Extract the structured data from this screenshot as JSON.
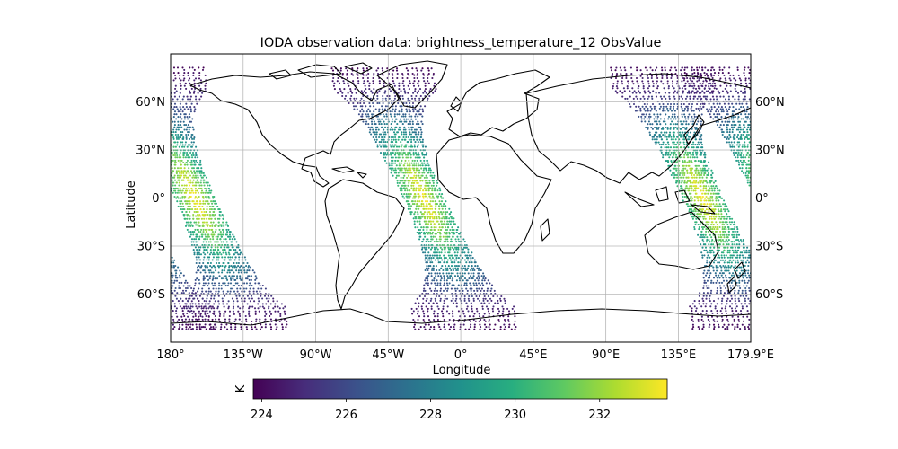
{
  "title": "IODA observation data: brightness_temperature_12 ObsValue",
  "xlabel": "Longitude",
  "ylabel": "Latitude",
  "colorbar": {
    "label": "K",
    "colormap": "viridis",
    "ticks": [
      "224",
      "226",
      "228",
      "230",
      "232"
    ],
    "range": [
      223.8,
      233.6
    ]
  },
  "x_ticks": [
    {
      "value": -180,
      "label": "180°"
    },
    {
      "value": -135,
      "label": "135°W"
    },
    {
      "value": -90,
      "label": "90°W"
    },
    {
      "value": -45,
      "label": "45°W"
    },
    {
      "value": 0,
      "label": "0°"
    },
    {
      "value": 45,
      "label": "45°E"
    },
    {
      "value": 90,
      "label": "90°E"
    },
    {
      "value": 135,
      "label": "135°E"
    },
    {
      "value": 179.9,
      "label": "179.9°E"
    }
  ],
  "y_ticks": [
    {
      "value": 60,
      "label": "60°N"
    },
    {
      "value": 30,
      "label": "30°N"
    },
    {
      "value": 0,
      "label": "0°"
    },
    {
      "value": -30,
      "label": "30°S"
    },
    {
      "value": -60,
      "label": "60°S"
    }
  ],
  "chart_data": {
    "type": "scatter",
    "projection": "PlateCarree",
    "xlim": [
      -180,
      179.9
    ],
    "ylim": [
      -90,
      90
    ],
    "grid": true,
    "value_units": "K",
    "color_scale": "viridis",
    "swaths": [
      {
        "name": "",
        "equator_crossing_lon": -165,
        "half_width_deg": 12,
        "min_value": 224,
        "max_value": 233.5
      },
      {
        "name": "",
        "equator_crossing_lon": -23,
        "half_width_deg": 12,
        "min_value": 224,
        "max_value": 233.5
      },
      {
        "name": "",
        "equator_crossing_lon": 150,
        "half_width_deg": 12,
        "min_value": 224,
        "max_value": 233.5
      }
    ],
    "pattern": "values peak (~233 K) at low latitudes within each swath center and drop to ~224 K toward the poles"
  },
  "colors": {
    "coastline": "#000000",
    "grid": "#b0b0b0"
  }
}
